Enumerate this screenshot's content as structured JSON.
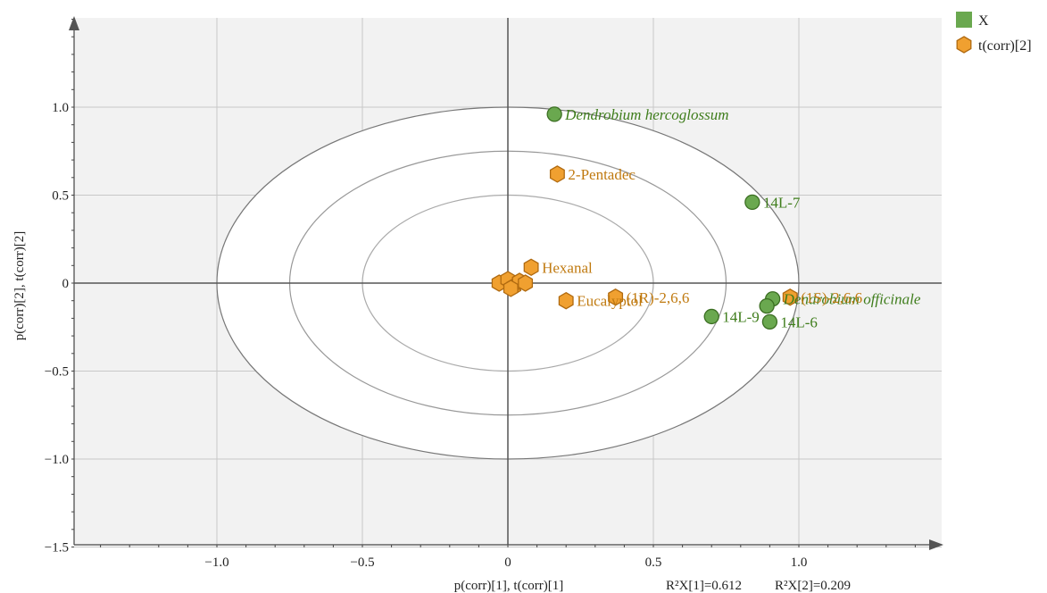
{
  "chart_data": {
    "type": "scatter",
    "xlabel": "p(corr)[1], t(corr)[1]",
    "ylabel": "p(corr)[2], t(corr)[2]",
    "r2_note": {
      "first": "R²X[1]=0.612",
      "second": "R²X[2]=0.209"
    },
    "xlim": [
      -1.5,
      1.5
    ],
    "ylim": [
      -1.5,
      1.5
    ],
    "x_ticks": [
      -1.0,
      -0.5,
      0,
      0.5,
      1.0
    ],
    "x_tick_labels": [
      "−1.0",
      "−0.5",
      "0",
      "0.5",
      "1.0"
    ],
    "y_ticks": [
      1.0,
      0.5,
      0,
      -0.5,
      -1.0,
      -1.5
    ],
    "y_tick_labels": [
      "1.0",
      "0.5",
      "0",
      "−0.5",
      "−1.0",
      "−1.5"
    ],
    "ellipse_radii": [
      1.0,
      0.75,
      0.5
    ],
    "grid": true,
    "legend": {
      "position": "top-right",
      "entries": [
        {
          "name": "X",
          "marker": "square",
          "color": "#6aa84f"
        },
        {
          "name": "t(corr)[2]",
          "marker": "hexagon",
          "color": "#f0a030"
        }
      ]
    },
    "series": [
      {
        "name": "X",
        "marker": "circle",
        "color": "#6aa84f",
        "points": [
          {
            "x": 0.16,
            "y": 0.96,
            "label": "Dendrobium hercoglossum",
            "italic": true
          },
          {
            "x": 0.84,
            "y": 0.46,
            "label": "14L-7"
          },
          {
            "x": 0.7,
            "y": -0.19,
            "label": "14L-9"
          },
          {
            "x": 0.9,
            "y": -0.22,
            "label": "14L-6"
          },
          {
            "x": 0.91,
            "y": -0.09,
            "label": "Dendrobium officinale",
            "italic": true
          },
          {
            "x": 0.89,
            "y": -0.13,
            "label": ""
          }
        ]
      },
      {
        "name": "t(corr)[2]",
        "marker": "hexagon",
        "color": "#f0a030",
        "points": [
          {
            "x": 0.17,
            "y": 0.62,
            "label": "2-Pentadec"
          },
          {
            "x": 0.08,
            "y": 0.09,
            "label": "Hexanal"
          },
          {
            "x": 0.2,
            "y": -0.1,
            "label": "Eucalyptol"
          },
          {
            "x": 0.37,
            "y": -0.08,
            "label": "(1R)-2,6,6"
          },
          {
            "x": 0.97,
            "y": -0.08,
            "label": "(1S)-2,6,6"
          },
          {
            "x": -0.03,
            "y": 0.0,
            "label": ""
          },
          {
            "x": 0.0,
            "y": 0.02,
            "label": ""
          },
          {
            "x": 0.02,
            "y": -0.02,
            "label": ""
          },
          {
            "x": 0.04,
            "y": 0.01,
            "label": ""
          },
          {
            "x": 0.06,
            "y": 0.0,
            "label": ""
          },
          {
            "x": 0.01,
            "y": -0.03,
            "label": ""
          }
        ]
      }
    ]
  }
}
